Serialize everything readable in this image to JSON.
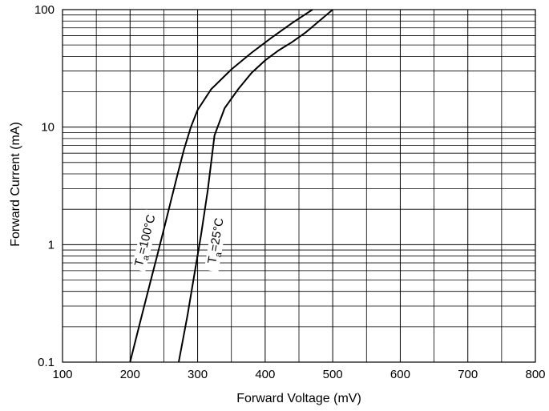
{
  "chart_data": {
    "type": "line",
    "title": "",
    "xlabel": "Forward Voltage (mV)",
    "ylabel": "Forward Current (mA)",
    "xlim": [
      100,
      800
    ],
    "ylim": [
      0.1,
      100
    ],
    "yscale": "log",
    "grid": true,
    "x_ticks": [
      100,
      200,
      300,
      400,
      500,
      600,
      700,
      800
    ],
    "x_tick_labels": [
      "100",
      "200",
      "300",
      "400",
      "500",
      "600",
      "700",
      "800"
    ],
    "y_ticks": [
      0.1,
      1,
      10,
      100
    ],
    "y_tick_labels": [
      "0.1",
      "1",
      "10",
      "100"
    ],
    "annotations": [
      {
        "base": "T",
        "sub": "a",
        "rest": "=100°C",
        "series": 0
      },
      {
        "base": "T",
        "sub": "a",
        "rest": "=25°C",
        "series": 1
      }
    ],
    "series": [
      {
        "x": [
          200,
          215,
          230,
          240,
          250,
          260,
          270,
          280,
          290,
          300,
          320,
          350,
          380,
          410,
          440,
          470
        ],
        "y": [
          0.1,
          0.22,
          0.48,
          0.8,
          1.35,
          2.3,
          3.9,
          6.5,
          10,
          14,
          21,
          31,
          43,
          58,
          77,
          100
        ]
      },
      {
        "x": [
          272,
          285,
          295,
          305,
          315,
          325,
          340,
          360,
          380,
          400,
          420,
          440,
          460,
          480,
          500
        ],
        "y": [
          0.1,
          0.25,
          0.55,
          1.2,
          2.9,
          8.5,
          14.5,
          21,
          29,
          37,
          45,
          53,
          64,
          80,
          100
        ]
      }
    ]
  }
}
